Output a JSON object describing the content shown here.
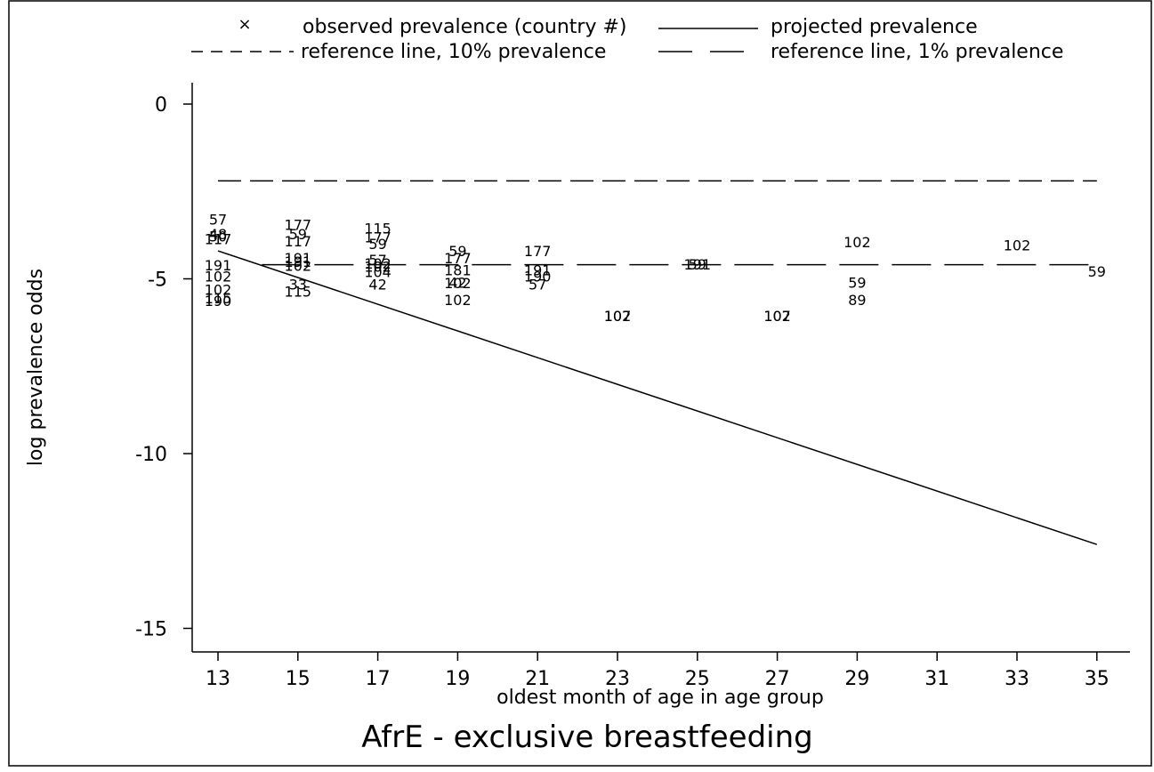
{
  "chart_data": {
    "type": "scatter",
    "title": "AfrE - exclusive breastfeeding",
    "xlabel": "oldest month of age in age group",
    "ylabel": "log prevalence odds",
    "xlim": [
      12.5,
      35.5
    ],
    "ylim": [
      -15.6,
      0.5
    ],
    "x_ticks": [
      "13",
      "15",
      "17",
      "19",
      "21",
      "23",
      "25",
      "27",
      "29",
      "31",
      "33",
      "35"
    ],
    "y_ticks": [
      "0",
      "-5",
      "-10",
      "-15"
    ],
    "grid": false,
    "legend_position": "top",
    "legend": [
      {
        "label": "observed prevalence (country #)",
        "style": "marker",
        "symbol": "×"
      },
      {
        "label": "projected prevalence",
        "style": "solid"
      },
      {
        "label": "reference line, 10% prevalence",
        "style": "short-dash"
      },
      {
        "label": "reference line, 1% prevalence",
        "style": "long-dash"
      }
    ],
    "series": [
      {
        "name": "observed prevalence (country #)",
        "points": [
          {
            "x": 13,
            "y": -3.3,
            "label": "57"
          },
          {
            "x": 13,
            "y": -3.72,
            "label": "48"
          },
          {
            "x": 13,
            "y": -3.78,
            "label": "50"
          },
          {
            "x": 13,
            "y": -3.85,
            "label": "117"
          },
          {
            "x": 13,
            "y": -4.6,
            "label": "191"
          },
          {
            "x": 13,
            "y": -4.92,
            "label": "102"
          },
          {
            "x": 13,
            "y": -5.3,
            "label": "102"
          },
          {
            "x": 13,
            "y": -5.55,
            "label": "115"
          },
          {
            "x": 13,
            "y": -5.62,
            "label": "190"
          },
          {
            "x": 15,
            "y": -3.45,
            "label": "177"
          },
          {
            "x": 15,
            "y": -3.72,
            "label": "59"
          },
          {
            "x": 15,
            "y": -3.92,
            "label": "117"
          },
          {
            "x": 15,
            "y": -4.4,
            "label": "191"
          },
          {
            "x": 15,
            "y": -4.5,
            "label": "191"
          },
          {
            "x": 15,
            "y": -4.62,
            "label": "102"
          },
          {
            "x": 15,
            "y": -5.15,
            "label": "33"
          },
          {
            "x": 15,
            "y": -5.35,
            "label": "115"
          },
          {
            "x": 17,
            "y": -3.55,
            "label": "115"
          },
          {
            "x": 17,
            "y": -3.8,
            "label": "177"
          },
          {
            "x": 17,
            "y": -4.0,
            "label": "59"
          },
          {
            "x": 17,
            "y": -4.45,
            "label": "57"
          },
          {
            "x": 17,
            "y": -4.55,
            "label": "102"
          },
          {
            "x": 17,
            "y": -4.65,
            "label": "102"
          },
          {
            "x": 17,
            "y": -4.8,
            "label": "104"
          },
          {
            "x": 17,
            "y": -5.15,
            "label": "42"
          },
          {
            "x": 19,
            "y": -4.2,
            "label": "59"
          },
          {
            "x": 19,
            "y": -4.4,
            "label": "177"
          },
          {
            "x": 19,
            "y": -4.75,
            "label": "181"
          },
          {
            "x": 19,
            "y": -5.1,
            "label": "42"
          },
          {
            "x": 19,
            "y": -5.12,
            "label": "102"
          },
          {
            "x": 19,
            "y": -5.6,
            "label": "102"
          },
          {
            "x": 21,
            "y": -4.2,
            "label": "177"
          },
          {
            "x": 21,
            "y": -4.75,
            "label": "191"
          },
          {
            "x": 21,
            "y": -4.92,
            "label": "190"
          },
          {
            "x": 21,
            "y": -5.15,
            "label": "57"
          },
          {
            "x": 23,
            "y": -6.05,
            "label": "107"
          },
          {
            "x": 23,
            "y": -6.05,
            "label": "102"
          },
          {
            "x": 25,
            "y": -4.58,
            "label": "59"
          },
          {
            "x": 25,
            "y": -4.58,
            "label": "191"
          },
          {
            "x": 27,
            "y": -6.05,
            "label": "107"
          },
          {
            "x": 27,
            "y": -6.05,
            "label": "102"
          },
          {
            "x": 29,
            "y": -3.95,
            "label": "102"
          },
          {
            "x": 29,
            "y": -5.1,
            "label": "59"
          },
          {
            "x": 29,
            "y": -5.6,
            "label": "89"
          },
          {
            "x": 33,
            "y": -4.03,
            "label": "102"
          },
          {
            "x": 35,
            "y": -4.78,
            "label": "59"
          }
        ]
      },
      {
        "name": "projected prevalence",
        "line": [
          {
            "x": 13,
            "y": -4.2
          },
          {
            "x": 35,
            "y": -12.6
          }
        ]
      },
      {
        "name": "reference line, 10% prevalence",
        "line": [
          {
            "x": 13,
            "y": -2.197
          },
          {
            "x": 35,
            "y": -2.197
          }
        ]
      },
      {
        "name": "reference line, 1% prevalence",
        "line": [
          {
            "x": 14.1,
            "y": -4.595
          },
          {
            "x": 35,
            "y": -4.595
          }
        ]
      }
    ]
  }
}
